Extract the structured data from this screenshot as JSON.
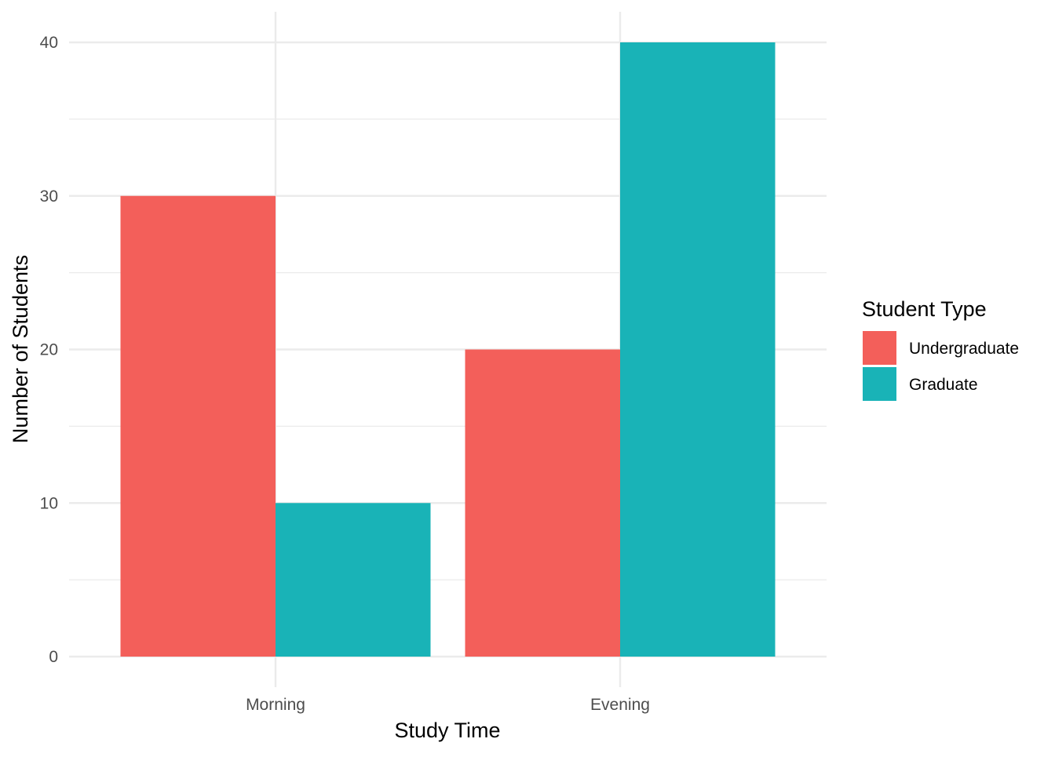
{
  "chart_data": {
    "type": "bar",
    "title": "",
    "xlabel": "Study Time",
    "ylabel": "Number of Students",
    "categories": [
      "Morning",
      "Evening"
    ],
    "series": [
      {
        "name": "Undergraduate",
        "values": [
          30,
          20
        ],
        "color": "#F35F5A"
      },
      {
        "name": "Graduate",
        "values": [
          10,
          40
        ],
        "color": "#19B3B7"
      }
    ],
    "ylim": [
      0,
      40
    ],
    "yticks": [
      "0",
      "10",
      "20",
      "30",
      "40"
    ],
    "grid": true,
    "legend": {
      "title": "Student Type",
      "placement": "right"
    }
  }
}
